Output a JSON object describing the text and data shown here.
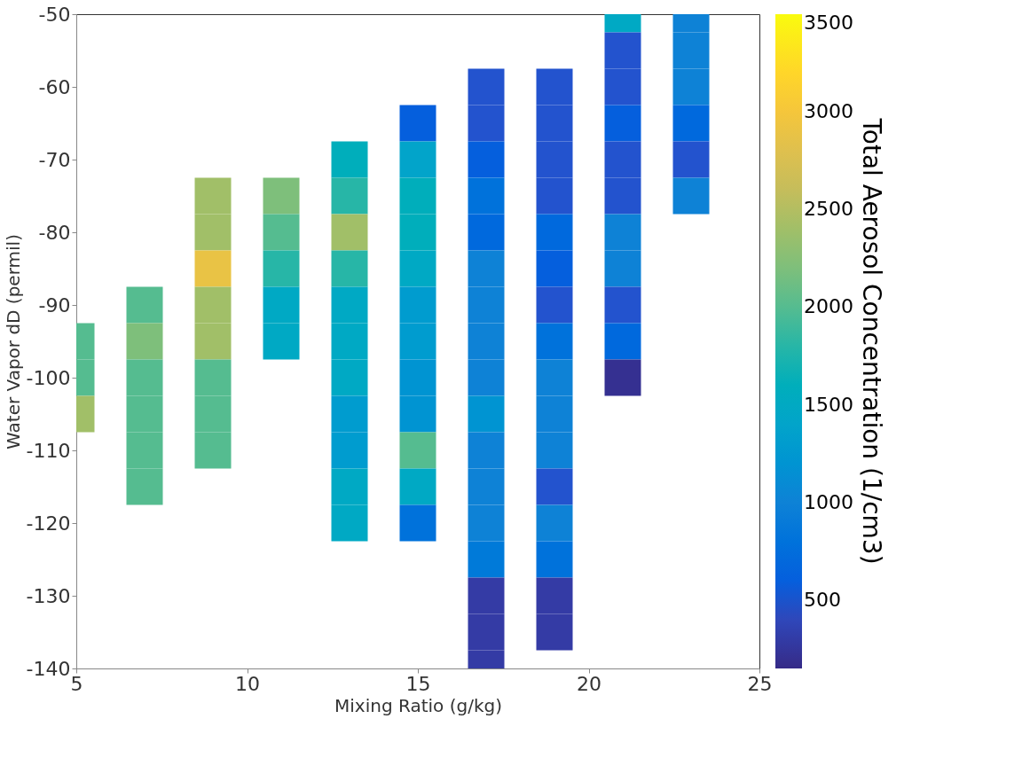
{
  "chart_data": {
    "type": "scatter",
    "marker": "square",
    "grid": false,
    "xlabel": "Mixing Ratio (g/kg)",
    "ylabel": "Water Vapor dD (permil)",
    "clabel": "Total Aerosol Concentration (1/cm3)",
    "xlim": [
      5,
      25
    ],
    "xticks": [
      5,
      10,
      15,
      20,
      25
    ],
    "ylim": [
      -140,
      -50
    ],
    "yticks": [
      -50,
      -60,
      -70,
      -80,
      -90,
      -100,
      -110,
      -120,
      -130,
      -140
    ],
    "clim": [
      150,
      3500
    ],
    "cticks": [
      500,
      1000,
      1500,
      2000,
      2500,
      3000,
      3500
    ],
    "x": [
      5,
      5,
      5,
      7,
      7,
      7,
      7,
      7,
      7,
      9,
      9,
      9,
      9,
      9,
      9,
      9,
      9,
      11,
      11,
      11,
      11,
      11,
      13,
      13,
      13,
      13,
      13,
      13,
      13,
      13,
      13,
      13,
      13,
      15,
      15,
      15,
      15,
      15,
      15,
      15,
      15,
      15,
      15,
      15,
      15,
      17,
      17,
      17,
      17,
      17,
      17,
      17,
      17,
      17,
      17,
      17,
      17,
      17,
      17,
      17,
      17,
      17,
      19,
      19,
      19,
      19,
      19,
      19,
      19,
      19,
      19,
      19,
      19,
      19,
      19,
      19,
      19,
      19,
      21,
      21,
      21,
      21,
      21,
      21,
      21,
      21,
      21,
      21,
      21,
      23,
      23,
      23,
      23,
      23,
      23
    ],
    "values": [
      -95,
      -100,
      -105,
      -90,
      -95,
      -100,
      -105,
      -110,
      -115,
      -75,
      -80,
      -85,
      -90,
      -95,
      -100,
      -105,
      -110,
      -75,
      -80,
      -85,
      -90,
      -95,
      -70,
      -75,
      -80,
      -85,
      -90,
      -95,
      -100,
      -105,
      -110,
      -115,
      -120,
      -65,
      -70,
      -75,
      -80,
      -85,
      -90,
      -95,
      -100,
      -105,
      -110,
      -115,
      -120,
      -60,
      -65,
      -70,
      -75,
      -80,
      -85,
      -90,
      -95,
      -100,
      -105,
      -110,
      -115,
      -120,
      -125,
      -130,
      -135,
      -140,
      -60,
      -65,
      -70,
      -75,
      -80,
      -85,
      -90,
      -95,
      -100,
      -105,
      -110,
      -115,
      -120,
      -125,
      -130,
      -135,
      -50,
      -55,
      -60,
      -65,
      -70,
      -75,
      -80,
      -85,
      -90,
      -95,
      -100,
      -50,
      -55,
      -60,
      -65,
      -70,
      -75
    ],
    "cvalues": [
      2000,
      2000,
      2400,
      2000,
      2200,
      2000,
      2000,
      2000,
      2000,
      2400,
      2400,
      2900,
      2400,
      2400,
      2000,
      2000,
      2000,
      2200,
      2000,
      1800,
      1500,
      1500,
      1600,
      1800,
      2400,
      1800,
      1500,
      1500,
      1500,
      1300,
      1300,
      1500,
      1500,
      600,
      1400,
      1600,
      1600,
      1500,
      1300,
      1300,
      1200,
      1200,
      2000,
      1500,
      800,
      500,
      500,
      600,
      800,
      700,
      1000,
      1000,
      1000,
      1000,
      1200,
      1000,
      1000,
      1000,
      900,
      300,
      300,
      300,
      500,
      500,
      500,
      500,
      700,
      600,
      500,
      800,
      1000,
      1000,
      1000,
      500,
      1000,
      800,
      300,
      300,
      1500,
      500,
      500,
      600,
      500,
      500,
      1000,
      1000,
      500,
      700,
      200,
      1000,
      1000,
      1000,
      700,
      500,
      1000
    ]
  }
}
